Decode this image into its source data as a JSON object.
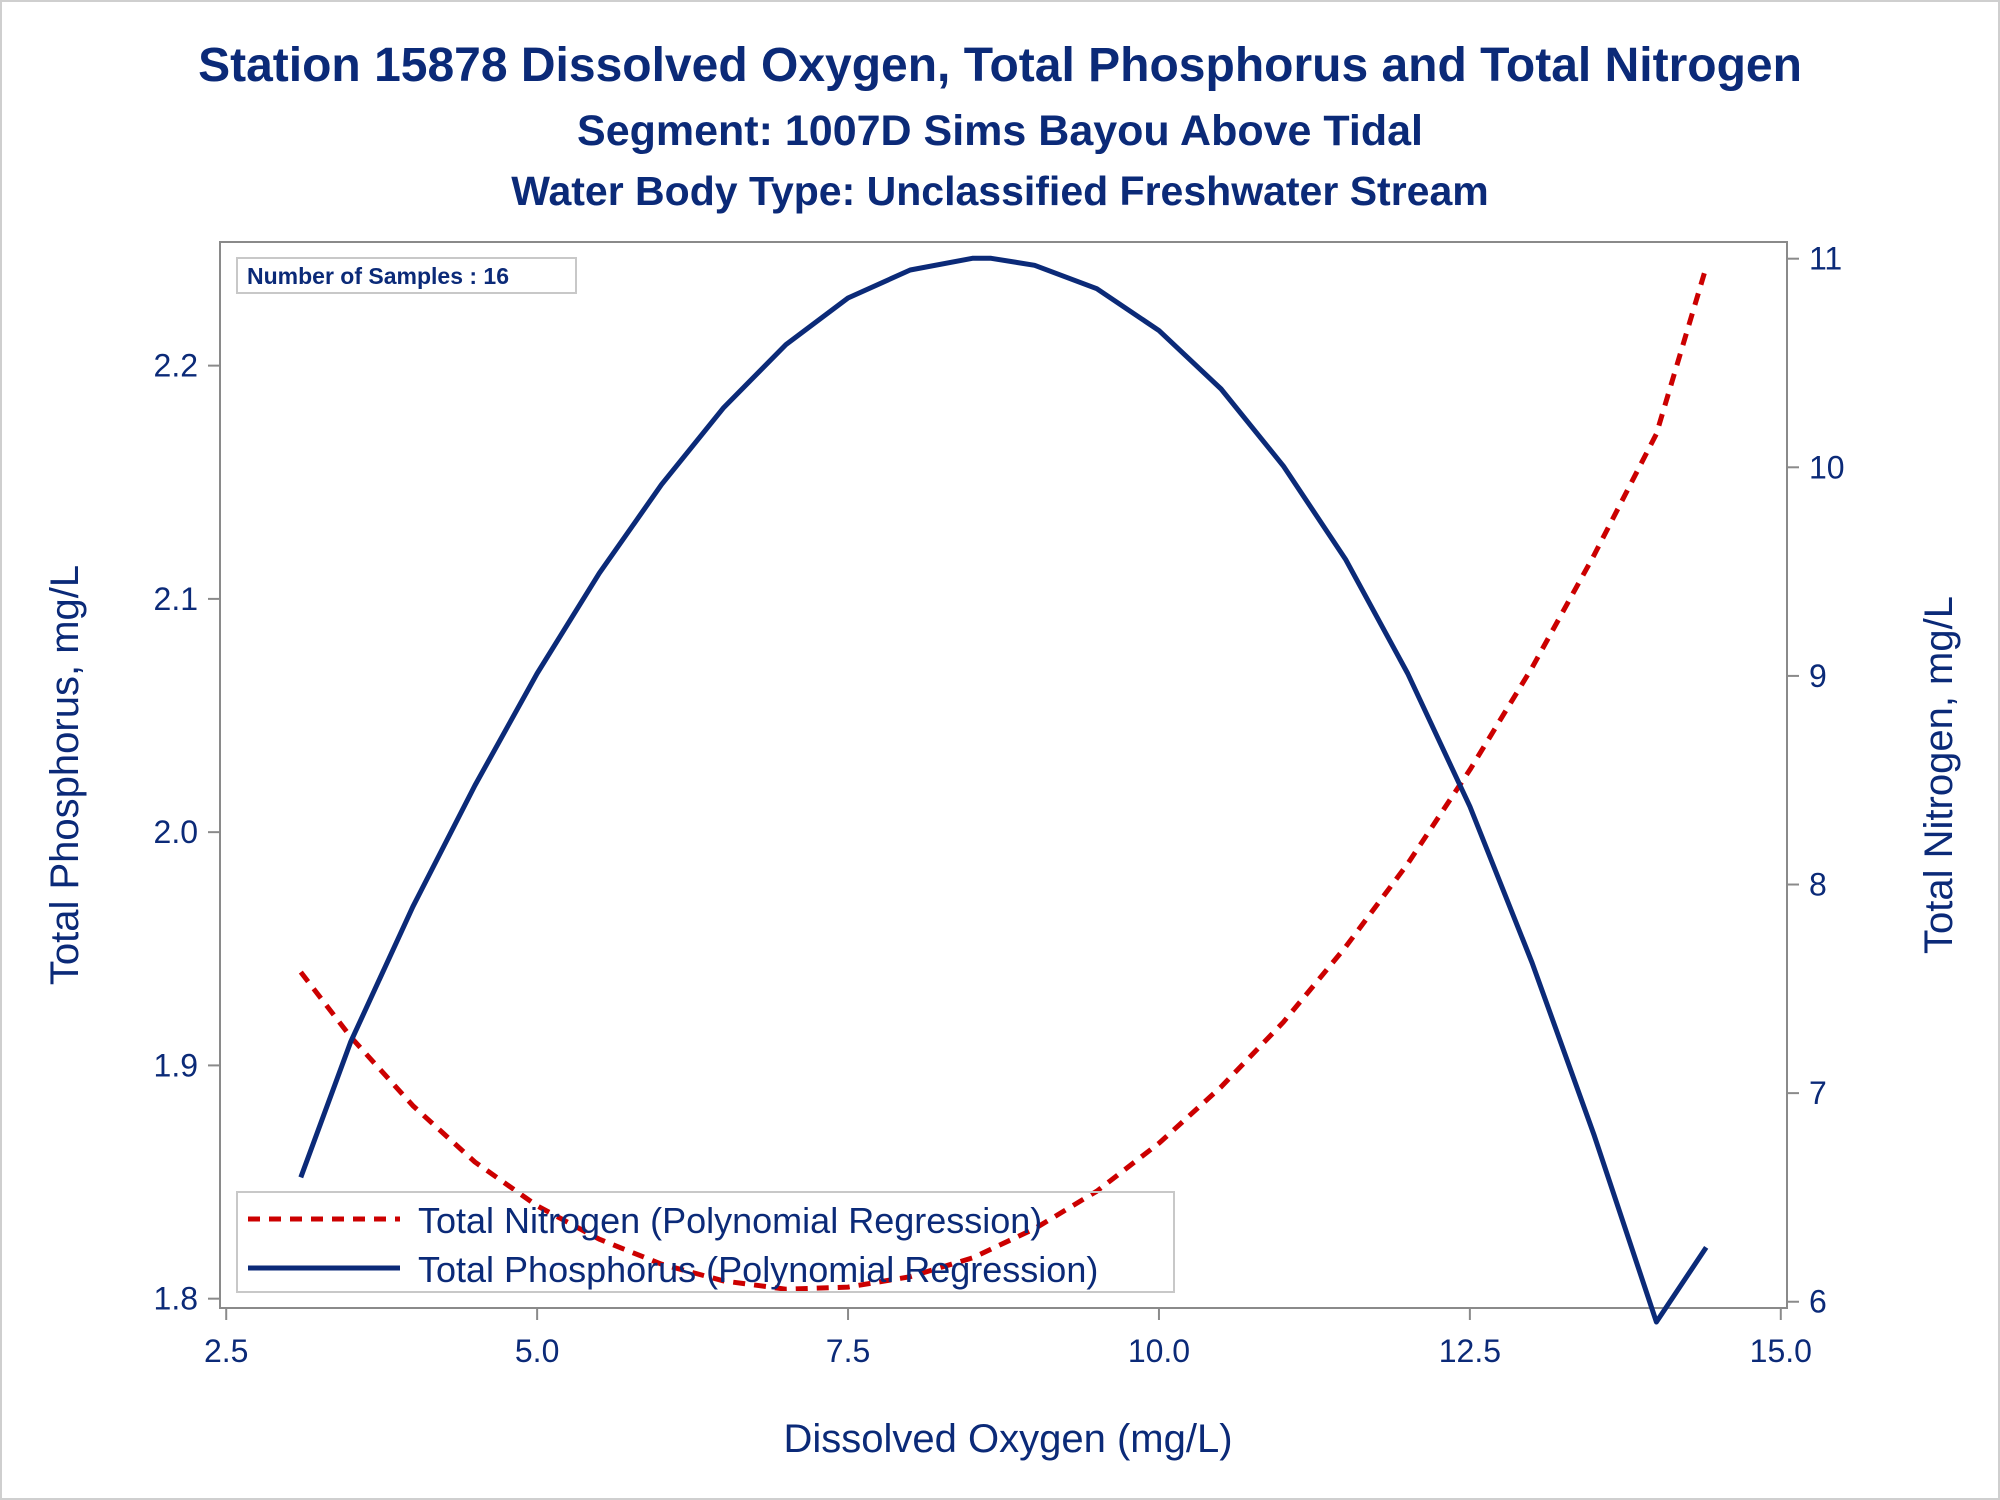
{
  "titles": {
    "line1": "Station 15878  Dissolved Oxygen, Total Phosphorus and Total Nitrogen",
    "line2": "Segment: 1007D  Sims Bayou Above Tidal",
    "line3": "Water Body Type: Unclassified Freshwater Stream"
  },
  "inset_label": "Number of Samples : 16",
  "colors": {
    "text": "#0b2a78",
    "nitrogen": "#cc0000",
    "phosphorus": "#0b2a78",
    "axis": "#8a8a8a"
  },
  "chart_data": {
    "type": "line",
    "xlabel": "Dissolved Oxygen (mg/L)",
    "ylabel_left": "Total Phosphorus, mg/L",
    "ylabel_right": "Total Nitrogen, mg/L",
    "xlim": [
      2.45,
      15.05
    ],
    "ylim_left": [
      1.796,
      2.253
    ],
    "ylim_right": [
      5.97,
      11.08
    ],
    "x_ticks": [
      "2.5",
      "5.0",
      "7.5",
      "10.0",
      "12.5",
      "15.0"
    ],
    "x_tick_values": [
      2.5,
      5.0,
      7.5,
      10.0,
      12.5,
      15.0
    ],
    "y_left_ticks": [
      "1.8",
      "1.9",
      "2.0",
      "2.1",
      "2.2"
    ],
    "y_left_tick_values": [
      1.8,
      1.9,
      2.0,
      2.1,
      2.2
    ],
    "y_right_ticks": [
      "6",
      "7",
      "8",
      "9",
      "10",
      "11"
    ],
    "y_right_tick_values": [
      6,
      7,
      8,
      9,
      10,
      11
    ],
    "legend_position": "bottom-left",
    "grid": false,
    "series": [
      {
        "name": "Total Nitrogen (Polynomial Regression)",
        "axis": "right",
        "style": "dashed",
        "x": [
          3.1,
          3.5,
          4.0,
          4.5,
          5.0,
          5.5,
          6.0,
          6.5,
          7.0,
          7.5,
          8.0,
          8.5,
          9.0,
          9.5,
          10.0,
          10.5,
          11.0,
          11.5,
          12.0,
          12.5,
          13.0,
          13.5,
          14.0,
          14.4
        ],
        "y": [
          7.58,
          7.27,
          6.94,
          6.67,
          6.46,
          6.3,
          6.18,
          6.1,
          6.06,
          6.07,
          6.12,
          6.21,
          6.35,
          6.53,
          6.76,
          7.03,
          7.34,
          7.7,
          8.1,
          8.55,
          9.04,
          9.58,
          10.16,
          10.96
        ]
      },
      {
        "name": "Total Phosphorus (Polynomial Regression)",
        "axis": "left",
        "style": "solid",
        "x": [
          3.1,
          3.5,
          4.0,
          4.5,
          5.0,
          5.5,
          6.0,
          6.5,
          7.0,
          7.5,
          8.0,
          8.5,
          8.65,
          9.0,
          9.5,
          10.0,
          10.5,
          11.0,
          11.5,
          12.0,
          12.5,
          13.0,
          13.5,
          14.0,
          14.4
        ],
        "y": [
          1.852,
          1.91,
          1.968,
          2.02,
          2.068,
          2.111,
          2.149,
          2.182,
          2.209,
          2.229,
          2.241,
          2.246,
          2.246,
          2.243,
          2.233,
          2.215,
          2.19,
          2.157,
          2.117,
          2.068,
          2.011,
          1.944,
          1.87,
          1.79,
          1.822
        ]
      }
    ]
  }
}
